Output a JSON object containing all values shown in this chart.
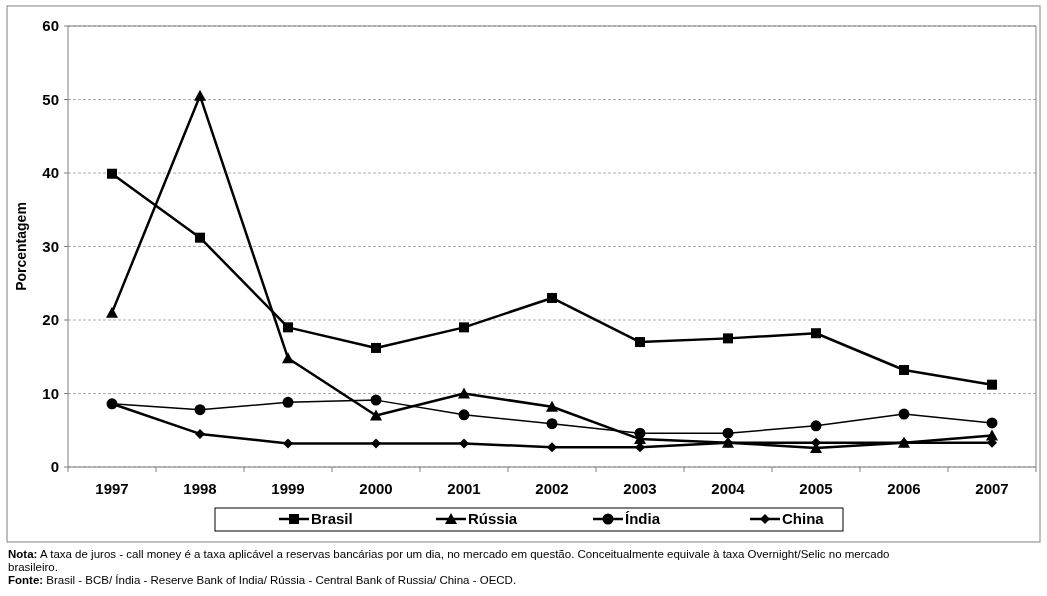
{
  "chart_data": {
    "type": "line",
    "ylabel": "Porcentagem",
    "categories": [
      "1997",
      "1998",
      "1999",
      "2000",
      "2001",
      "2002",
      "2003",
      "2004",
      "2005",
      "2006",
      "2007"
    ],
    "series": [
      {
        "name": "Brasil",
        "color": "#000000",
        "marker": "square",
        "values": [
          39.9,
          31.2,
          19.0,
          16.2,
          19.0,
          23.0,
          17.0,
          17.5,
          18.2,
          13.2,
          11.2
        ]
      },
      {
        "name": "Rússia",
        "color": "#000000",
        "marker": "triangle",
        "values": [
          21.0,
          50.5,
          14.8,
          7.0,
          10.0,
          8.2,
          3.8,
          3.3,
          2.6,
          3.3,
          4.3
        ]
      },
      {
        "name": "Índia",
        "color": "#000000",
        "marker": "circle",
        "values": [
          8.6,
          7.8,
          8.8,
          9.1,
          7.1,
          5.9,
          4.6,
          4.6,
          5.6,
          7.2,
          6.0
        ]
      },
      {
        "name": "China",
        "color": "#000000",
        "marker": "diamond",
        "values": [
          8.6,
          4.5,
          3.2,
          3.2,
          3.2,
          2.7,
          2.7,
          3.3,
          3.3,
          3.3,
          3.3
        ]
      }
    ],
    "ylim": [
      0,
      60
    ],
    "yticks": [
      0,
      10,
      20,
      30,
      40,
      50,
      60
    ],
    "grid": "y",
    "legend": "bottom",
    "annotations": [
      "Nota: A taxa de juros - call money  é a taxa aplicável a reservas bancárias por um dia, no mercado em questão. Conceitualmente equivale à taxa Overnight/Selic no mercado brasileiro.",
      "Fonte: Brasil - BCB/ Índia - Reserve Bank of India/ Rússia - Central Bank of Russia/ China - OECD."
    ]
  }
}
